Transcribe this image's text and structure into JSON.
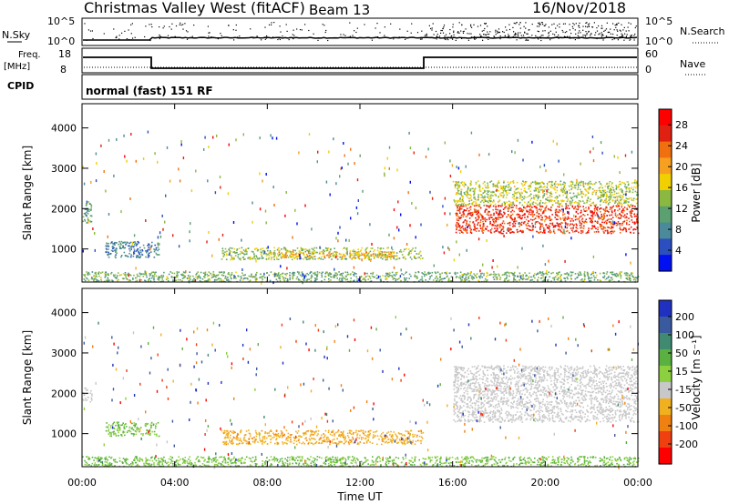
{
  "header": {
    "title": "Christmas Valley West (fitACF)",
    "beam": "Beam 13",
    "date": "16/Nov/2018"
  },
  "top_panels": {
    "nsky_label": "N.Sky",
    "nsky_ticks": [
      "10^5",
      "10^0"
    ],
    "nsearch_label": "N.Search",
    "nsearch_ticks": [
      "10^5",
      "10^0"
    ],
    "freq_label_1": "Freq.",
    "freq_label_2": "[MHz]",
    "freq_ticks": [
      "18",
      "8"
    ],
    "nave_label": "Nave",
    "nave_ticks": [
      "60",
      "0"
    ],
    "cpid_label": "CPID",
    "cpid_text": "normal (fast) 151 RF"
  },
  "chart_data": [
    {
      "type": "heatmap",
      "title": "",
      "xlabel": "",
      "ylabel": "Slant Range [km]",
      "xlim": [
        0,
        24
      ],
      "ylim": [
        180,
        4600
      ],
      "x_ticks": [
        "00:00",
        "04:00",
        "08:00",
        "12:00",
        "16:00",
        "20:00",
        "00:00"
      ],
      "y_ticks": [
        1000,
        2000,
        3000,
        4000
      ],
      "colorbar": {
        "label": "Power [dB]",
        "ticks": [
          4,
          8,
          12,
          16,
          20,
          24,
          28
        ],
        "range": [
          0,
          31
        ],
        "colors": [
          "#0010f0",
          "#2c4fc0",
          "#4a8a9a",
          "#5aa070",
          "#8ab840",
          "#f0d000",
          "#f7a020",
          "#f07010",
          "#e02010",
          "#ff0000"
        ]
      },
      "echo_regions": [
        {
          "t_start": 0.0,
          "t_end": 0.4,
          "range_low": 1650,
          "range_high": 2200,
          "value": 10
        },
        {
          "t_start": 1.0,
          "t_end": 3.3,
          "range_low": 800,
          "range_high": 1200,
          "value": 8
        },
        {
          "t_start": 6.0,
          "t_end": 14.7,
          "range_low": 750,
          "range_high": 1050,
          "value": 14
        },
        {
          "t_start": 8.0,
          "t_end": 13.5,
          "range_low": 800,
          "range_high": 950,
          "value": 20
        },
        {
          "t_start": 16.1,
          "t_end": 24.0,
          "range_low": 1400,
          "range_high": 2100,
          "value": 26
        },
        {
          "t_start": 16.0,
          "t_end": 24.0,
          "range_low": 2100,
          "range_high": 2700,
          "value": 15
        },
        {
          "t_start": 0.0,
          "t_end": 24.0,
          "range_low": 200,
          "range_high": 450,
          "value": 12
        }
      ]
    },
    {
      "type": "heatmap",
      "title": "",
      "xlabel": "Time UT",
      "ylabel": "Slant Range [km]",
      "xlim": [
        0,
        24
      ],
      "ylim": [
        180,
        4600
      ],
      "x_ticks": [
        "00:00",
        "04:00",
        "08:00",
        "12:00",
        "16:00",
        "20:00",
        "00:00"
      ],
      "y_ticks": [
        1000,
        2000,
        3000,
        4000
      ],
      "colorbar": {
        "label": "Velocity [m s⁻¹]",
        "ticks": [
          200,
          100,
          50,
          15,
          -15,
          -50,
          -100,
          -200
        ],
        "colors": [
          "#2030c0",
          "#3a5aa0",
          "#3f8a70",
          "#5ab040",
          "#8cd040",
          "#c8c8c8",
          "#f0b020",
          "#f08010",
          "#f04010",
          "#ff0000"
        ]
      },
      "echo_regions": [
        {
          "t_start": 0.0,
          "t_end": 0.4,
          "range_low": 1800,
          "range_high": 2150,
          "value": 0
        },
        {
          "t_start": 1.0,
          "t_end": 3.3,
          "range_low": 950,
          "range_high": 1300,
          "value": 30
        },
        {
          "t_start": 6.0,
          "t_end": 14.7,
          "range_low": 750,
          "range_high": 1100,
          "value": -40
        },
        {
          "t_start": 16.0,
          "t_end": 24.0,
          "range_low": 1300,
          "range_high": 2700,
          "value": 0
        },
        {
          "t_start": 0.0,
          "t_end": 24.0,
          "range_low": 200,
          "range_high": 450,
          "value": 30
        }
      ]
    }
  ]
}
